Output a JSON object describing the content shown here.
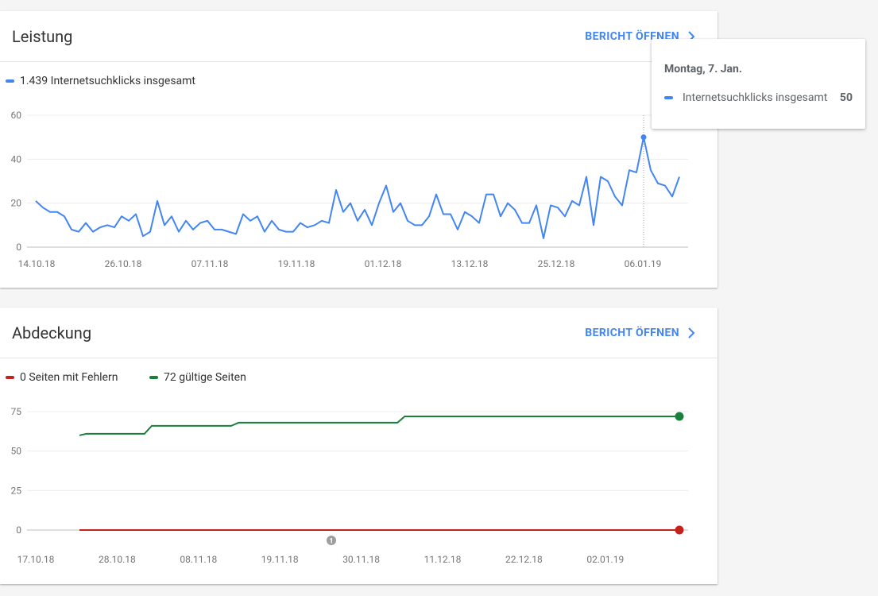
{
  "colors": {
    "blue": "#4285f4",
    "red": "#c5221f",
    "green": "#188038",
    "grid": "#ececec",
    "axis": "#9e9e9e"
  },
  "performance": {
    "title": "Leistung",
    "open_report": "BERICHT ÖFFNEN",
    "legend": "1.439 Internetsuchklicks insgesamt",
    "tooltip": {
      "date": "Montag, 7. Jan.",
      "label": "Internetsuchklicks insgesamt",
      "value": "50"
    }
  },
  "coverage": {
    "title": "Abdeckung",
    "open_report": "BERICHT ÖFFNEN",
    "legend_errors": "0 Seiten mit Fehlern",
    "legend_valid": "72 gültige Seiten",
    "annotation": "1"
  },
  "chart_data": [
    {
      "type": "line",
      "title": "Leistung",
      "x_tick_labels": [
        "14.10.18",
        "26.10.18",
        "07.11.18",
        "19.11.18",
        "01.12.18",
        "13.12.18",
        "25.12.18",
        "06.01.19"
      ],
      "y_ticks": [
        0,
        20,
        40,
        60
      ],
      "ylim": [
        0,
        60
      ],
      "grid": true,
      "series": [
        {
          "name": "Internetsuchklicks insgesamt",
          "color": "#4285f4",
          "values": [
            21,
            18,
            16,
            16,
            14,
            8,
            7,
            11,
            7,
            9,
            10,
            9,
            14,
            12,
            15,
            5,
            7,
            21,
            10,
            14,
            7,
            12,
            8,
            11,
            12,
            8,
            8,
            7,
            6,
            15,
            12,
            14,
            7,
            12,
            8,
            7,
            7,
            11,
            9,
            10,
            12,
            11,
            26,
            16,
            20,
            12,
            17,
            10,
            20,
            28,
            16,
            20,
            12,
            10,
            10,
            14,
            24,
            15,
            15,
            8,
            16,
            14,
            11,
            24,
            24,
            14,
            20,
            17,
            11,
            11,
            19,
            4,
            19,
            18,
            14,
            21,
            19,
            32,
            10,
            32,
            30,
            23,
            19,
            35,
            34,
            50,
            35,
            29,
            28,
            23,
            32
          ]
        }
      ],
      "highlight": {
        "index": 85,
        "date": "Montag, 7. Jan.",
        "value": 50
      }
    },
    {
      "type": "line",
      "title": "Abdeckung",
      "x_tick_labels": [
        "17.10.18",
        "28.10.18",
        "08.11.18",
        "19.11.18",
        "30.11.18",
        "11.12.18",
        "22.12.18",
        "02.01.19"
      ],
      "y_ticks": [
        0,
        25,
        50,
        75
      ],
      "ylim": [
        0,
        75
      ],
      "grid": true,
      "series": [
        {
          "name": "Seiten mit Fehlern",
          "color": "#c5221f",
          "values": [
            0,
            0,
            0,
            0,
            0,
            0,
            0,
            0,
            0,
            0,
            0,
            0,
            0,
            0,
            0,
            0,
            0,
            0,
            0,
            0,
            0,
            0,
            0,
            0,
            0,
            0,
            0,
            0,
            0,
            0,
            0,
            0,
            0,
            0,
            0,
            0,
            0,
            0,
            0,
            0,
            0,
            0,
            0,
            0,
            0,
            0,
            0,
            0,
            0,
            0,
            0,
            0,
            0,
            0,
            0,
            0,
            0,
            0,
            0,
            0,
            0,
            0,
            0,
            0,
            0,
            0,
            0,
            0,
            0,
            0,
            0,
            0,
            0,
            0,
            0,
            0,
            0,
            0,
            0,
            0,
            0,
            0,
            0
          ]
        },
        {
          "name": "gültige Seiten",
          "color": "#188038",
          "values": [
            60,
            61,
            61,
            61,
            61,
            61,
            61,
            61,
            61,
            61,
            66,
            66,
            66,
            66,
            66,
            66,
            66,
            66,
            66,
            66,
            66,
            66,
            68,
            68,
            68,
            68,
            68,
            68,
            68,
            68,
            68,
            68,
            68,
            68,
            68,
            68,
            68,
            68,
            68,
            68,
            68,
            68,
            68,
            68,
            68,
            72,
            72,
            72,
            72,
            72,
            72,
            72,
            72,
            72,
            72,
            72,
            72,
            72,
            72,
            72,
            72,
            72,
            72,
            72,
            72,
            72,
            72,
            72,
            72,
            72,
            72,
            72,
            72,
            72,
            72,
            72,
            72,
            72,
            72,
            72,
            72,
            72,
            72,
            72
          ]
        }
      ],
      "annotation": {
        "date": "30.11.18",
        "label": "1"
      }
    }
  ]
}
